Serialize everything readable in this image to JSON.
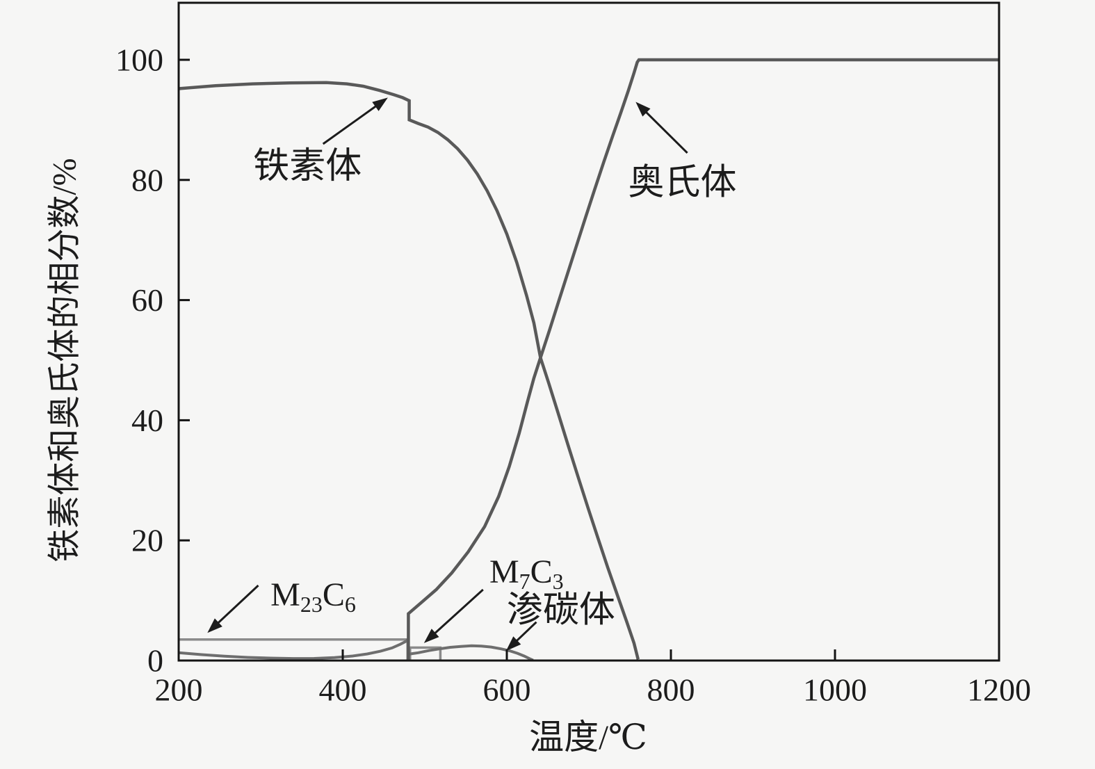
{
  "figure": {
    "background": "#f6f6f5",
    "ink": "#1c1c1c",
    "frame_color": "#141414"
  },
  "chart_data": {
    "type": "line",
    "title": "",
    "xlabel": "温度/℃",
    "ylabel": "铁素体和奥氏体的相分数/%",
    "xlim": [
      200,
      1200
    ],
    "ylim": [
      0,
      100
    ],
    "grid": false,
    "legend": "none — curves identified by inline arrow annotations",
    "x_ticks": [
      200,
      400,
      600,
      800,
      1000,
      1200
    ],
    "y_ticks": [
      0,
      20,
      40,
      60,
      80,
      100
    ],
    "series": [
      {
        "name": "M23C6",
        "name_en": "m23c6-carbide",
        "color": "#8b8b8b",
        "width": 3.5,
        "points": [
          [
            200,
            3.5
          ],
          [
            479,
            3.5
          ],
          [
            479,
            0.1
          ]
        ]
      },
      {
        "name": "M7C3",
        "name_en": "m7c3-carbide",
        "color": "#8b8b8b",
        "width": 3.5,
        "points": [
          [
            482,
            0.1
          ],
          [
            482,
            2.15
          ],
          [
            519,
            2.15
          ],
          [
            519,
            0.1
          ]
        ]
      },
      {
        "name": "渗碳体",
        "name_en": "cementite",
        "color": "#6e6e6e",
        "width": 4,
        "points": [
          [
            200,
            1.3
          ],
          [
            228,
            0.98
          ],
          [
            256,
            0.72
          ],
          [
            284,
            0.52
          ],
          [
            312,
            0.4
          ],
          [
            340,
            0.33
          ],
          [
            365,
            0.35
          ],
          [
            390,
            0.5
          ],
          [
            412,
            0.75
          ],
          [
            430,
            1.1
          ],
          [
            446,
            1.55
          ],
          [
            460,
            2.1
          ],
          [
            470,
            2.7
          ],
          [
            477,
            3.2
          ],
          [
            480,
            3.6
          ],
          [
            480,
            1.05
          ],
          [
            492,
            1.3
          ],
          [
            505,
            1.65
          ],
          [
            518,
            1.95
          ],
          [
            531,
            2.2
          ],
          [
            544,
            2.35
          ],
          [
            557,
            2.45
          ],
          [
            569,
            2.4
          ],
          [
            581,
            2.25
          ],
          [
            593,
            1.95
          ],
          [
            604,
            1.6
          ],
          [
            613,
            1.2
          ],
          [
            621,
            0.75
          ],
          [
            628,
            0.3
          ],
          [
            632,
            0.05
          ]
        ]
      },
      {
        "name": "铁素体",
        "name_en": "ferrite",
        "color": "#595959",
        "width": 4.5,
        "points": [
          [
            200,
            95.2
          ],
          [
            245,
            95.7
          ],
          [
            290,
            96.0
          ],
          [
            335,
            96.15
          ],
          [
            380,
            96.2
          ],
          [
            405,
            96.0
          ],
          [
            425,
            95.6
          ],
          [
            445,
            94.9
          ],
          [
            462,
            94.2
          ],
          [
            473,
            93.7
          ],
          [
            481,
            93.2
          ],
          [
            481,
            90.0
          ],
          [
            492,
            89.4
          ],
          [
            504,
            88.8
          ],
          [
            516,
            87.9
          ],
          [
            528,
            86.7
          ],
          [
            540,
            85.2
          ],
          [
            552,
            83.3
          ],
          [
            564,
            81.0
          ],
          [
            576,
            78.2
          ],
          [
            588,
            74.9
          ],
          [
            600,
            71.0
          ],
          [
            612,
            66.3
          ],
          [
            624,
            60.8
          ],
          [
            633,
            56.2
          ],
          [
            641,
            50.4
          ],
          [
            651,
            46.2
          ],
          [
            663,
            41.0
          ],
          [
            675,
            35.7
          ],
          [
            687,
            30.5
          ],
          [
            699,
            25.4
          ],
          [
            711,
            20.4
          ],
          [
            723,
            15.5
          ],
          [
            735,
            10.8
          ],
          [
            746,
            6.5
          ],
          [
            755,
            2.9
          ],
          [
            760,
            0.2
          ]
        ]
      },
      {
        "name": "奥氏体",
        "name_en": "austenite",
        "color": "#595959",
        "width": 4.5,
        "points": [
          [
            480,
            0.2
          ],
          [
            480,
            7.8
          ],
          [
            497,
            9.8
          ],
          [
            514,
            11.8
          ],
          [
            533,
            14.6
          ],
          [
            553,
            18.1
          ],
          [
            573,
            22.3
          ],
          [
            590,
            27.3
          ],
          [
            603,
            32.3
          ],
          [
            615,
            37.8
          ],
          [
            625,
            43.0
          ],
          [
            633,
            47.0
          ],
          [
            641,
            50.4
          ],
          [
            652,
            55.0
          ],
          [
            663,
            59.7
          ],
          [
            674,
            64.4
          ],
          [
            685,
            69.1
          ],
          [
            696,
            73.8
          ],
          [
            707,
            78.4
          ],
          [
            718,
            82.9
          ],
          [
            729,
            87.3
          ],
          [
            739,
            91.2
          ],
          [
            748,
            94.8
          ],
          [
            755,
            97.8
          ],
          [
            759,
            99.6
          ],
          [
            761,
            100
          ],
          [
            1200,
            100
          ]
        ]
      }
    ],
    "annotations": [
      {
        "id": "ferrite",
        "parts": [
          {
            "t": "铁素体"
          }
        ],
        "x": 357,
        "y": 82.3,
        "fs": 52,
        "arrow": {
          "x1": 376,
          "y1": 86.0,
          "x2": 455,
          "y2": 93.7
        }
      },
      {
        "id": "austenite",
        "parts": [
          {
            "t": "奥氏体"
          }
        ],
        "x": 814,
        "y": 79.6,
        "fs": 52,
        "arrow": {
          "x1": 820,
          "y1": 84.5,
          "x2": 757,
          "y2": 93.0
        }
      },
      {
        "id": "m23c6",
        "parts": [
          {
            "t": "M"
          },
          {
            "t": "23",
            "sub": true
          },
          {
            "t": "C"
          },
          {
            "t": "6",
            "sub": true
          }
        ],
        "x": 364,
        "y": 11.0,
        "fs": 48,
        "arrow": {
          "x1": 297,
          "y1": 12.5,
          "x2": 235,
          "y2": 4.6
        }
      },
      {
        "id": "m7c3",
        "parts": [
          {
            "t": "M"
          },
          {
            "t": "7",
            "sub": true
          },
          {
            "t": "C"
          },
          {
            "t": "3",
            "sub": true
          }
        ],
        "x": 624,
        "y": 14.8,
        "fs": 48,
        "arrow": {
          "x1": 571,
          "y1": 11.8,
          "x2": 499,
          "y2": 2.9
        }
      },
      {
        "id": "cementite",
        "parts": [
          {
            "t": "渗碳体"
          }
        ],
        "x": 666,
        "y": 8.4,
        "fs": 52,
        "arrow": {
          "x1": 636,
          "y1": 6.4,
          "x2": 599,
          "y2": 1.6
        }
      }
    ]
  }
}
